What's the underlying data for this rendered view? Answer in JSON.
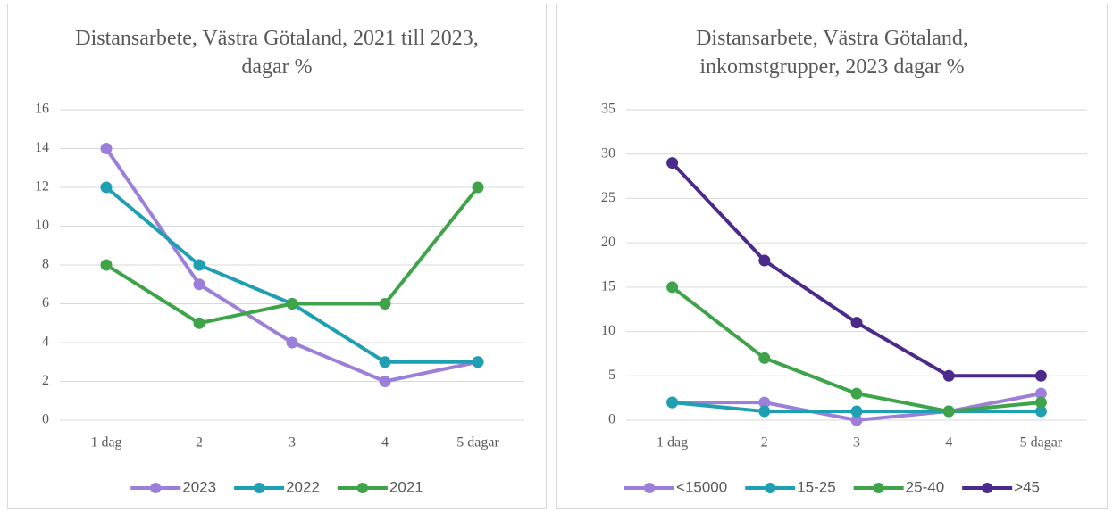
{
  "chart_data": [
    {
      "type": "line",
      "title": "Distansarbete, Västra Götaland, 2021 till 2023, dagar %",
      "categories": [
        "1 dag",
        "2",
        "3",
        "4",
        "5 dagar"
      ],
      "series": [
        {
          "name": "2023",
          "color": "#9b7fd9",
          "values": [
            14,
            7,
            4,
            2,
            3
          ]
        },
        {
          "name": "2022",
          "color": "#1f9fb2",
          "values": [
            12,
            8,
            6,
            3,
            3
          ]
        },
        {
          "name": "2021",
          "color": "#3fa34a",
          "values": [
            8,
            5,
            6,
            6,
            12
          ]
        }
      ],
      "ylim": [
        0,
        16
      ],
      "yticks": [
        0,
        2,
        4,
        6,
        8,
        10,
        12,
        14,
        16
      ],
      "grid": true,
      "legend": "bottom"
    },
    {
      "type": "line",
      "title": "Distansarbete, Västra Götaland, inkomstgrupper, 2023 dagar %",
      "categories": [
        "1 dag",
        "2",
        "3",
        "4",
        "5 dagar"
      ],
      "series": [
        {
          "name": "<15000",
          "color": "#9b7fd9",
          "values": [
            2,
            2,
            0,
            1,
            3
          ]
        },
        {
          "name": "15-25",
          "color": "#1f9fb2",
          "values": [
            2,
            1,
            1,
            1,
            1
          ]
        },
        {
          "name": "25-40",
          "color": "#3fa34a",
          "values": [
            15,
            7,
            3,
            1,
            2
          ]
        },
        {
          "name": ">45",
          "color": "#4b2a8c",
          "values": [
            29,
            18,
            11,
            5,
            5
          ]
        }
      ],
      "ylim": [
        0,
        35
      ],
      "yticks": [
        0,
        5,
        10,
        15,
        20,
        25,
        30,
        35
      ],
      "grid": true,
      "legend": "bottom"
    }
  ]
}
